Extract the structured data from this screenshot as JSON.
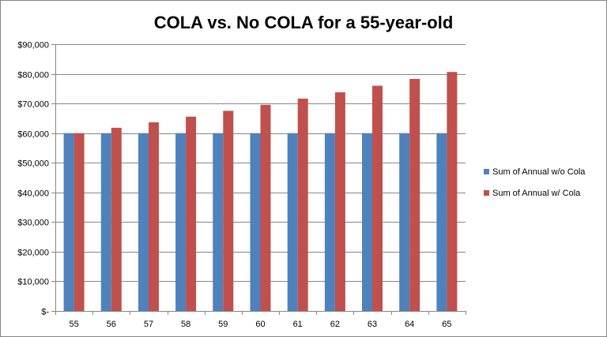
{
  "chart_data": {
    "type": "bar",
    "title": "COLA vs. No COLA for a 55-year-old",
    "xlabel": "",
    "ylabel": "",
    "categories": [
      "55",
      "56",
      "57",
      "58",
      "59",
      "60",
      "61",
      "62",
      "63",
      "64",
      "65"
    ],
    "ylim": [
      0,
      90000
    ],
    "yticks": [
      0,
      10000,
      20000,
      30000,
      40000,
      50000,
      60000,
      70000,
      80000,
      90000
    ],
    "ytick_labels": [
      "$-",
      "$10,000",
      "$20,000",
      "$30,000",
      "$40,000",
      "$50,000",
      "$60,000",
      "$70,000",
      "$80,000",
      "$90,000"
    ],
    "grid": true,
    "legend_position": "right",
    "series": [
      {
        "name": "Sum of Annual w/o Cola",
        "color": "#4F81BD",
        "values": [
          60000,
          60000,
          60000,
          60000,
          60000,
          60000,
          60000,
          60000,
          60000,
          60000,
          60000
        ]
      },
      {
        "name": "Sum of Annual w/ Cola",
        "color": "#C0504D",
        "values": [
          60000,
          61800,
          63654,
          65564,
          67531,
          69556,
          71643,
          73792,
          76006,
          78286,
          80635
        ]
      }
    ]
  }
}
